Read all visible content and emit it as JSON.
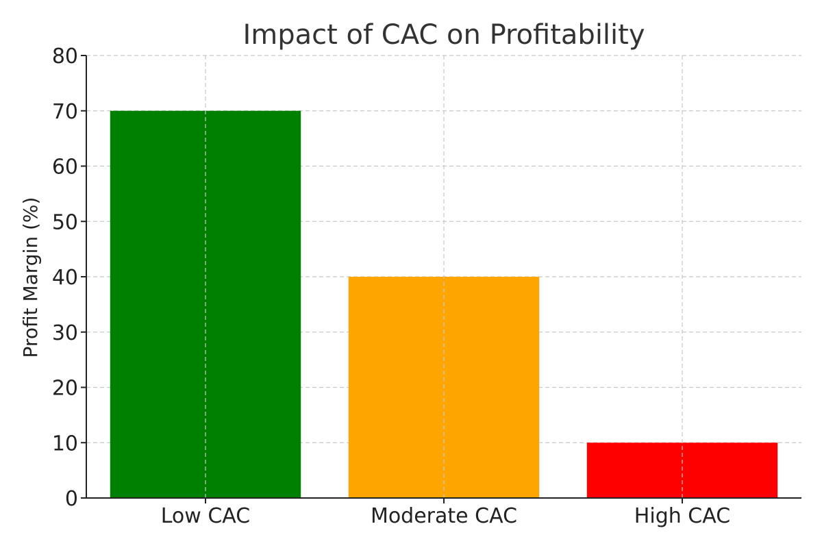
{
  "chart_data": {
    "type": "bar",
    "title": "Impact of CAC on Profitability",
    "xlabel": "",
    "ylabel": "Profit Margin (%)",
    "categories": [
      "Low CAC",
      "Moderate CAC",
      "High CAC"
    ],
    "values": [
      70,
      40,
      10
    ],
    "colors": [
      "#008000",
      "#FFA500",
      "#FF0000"
    ],
    "ylim": [
      0,
      80
    ],
    "yticks": [
      0,
      10,
      20,
      30,
      40,
      50,
      60,
      70,
      80
    ],
    "grid": true
  }
}
